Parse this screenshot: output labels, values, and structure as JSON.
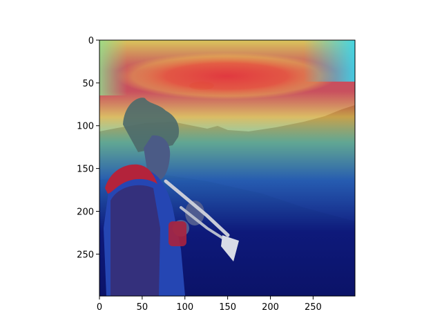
{
  "figure": {
    "image_description_icon": "heatmap-overlay-photo",
    "axes": {
      "x_ticks": [
        {
          "value": 0,
          "label": "0"
        },
        {
          "value": 50,
          "label": "50"
        },
        {
          "value": 100,
          "label": "100"
        },
        {
          "value": 150,
          "label": "150"
        },
        {
          "value": 200,
          "label": "200"
        },
        {
          "value": 250,
          "label": "250"
        }
      ],
      "y_ticks": [
        {
          "value": 0,
          "label": "0"
        },
        {
          "value": 50,
          "label": "50"
        },
        {
          "value": 100,
          "label": "100"
        },
        {
          "value": 150,
          "label": "150"
        },
        {
          "value": 200,
          "label": "200"
        },
        {
          "value": 250,
          "label": "250"
        }
      ],
      "xlim": [
        0,
        299
      ],
      "ylim": [
        299,
        0
      ]
    },
    "colors": {
      "heat_hot": "#e5353a",
      "heat_warm": "#f2c14a",
      "heat_mid": "#7fe0b0",
      "heat_cool": "#35c8e8",
      "heat_cold": "#0d1a8a",
      "sky": "#7fb2d9",
      "ground": "#151a3d",
      "jacket_red": "#b3233b",
      "jacket_blue": "#2546b3",
      "trumpet": "#c9ccd8"
    }
  }
}
